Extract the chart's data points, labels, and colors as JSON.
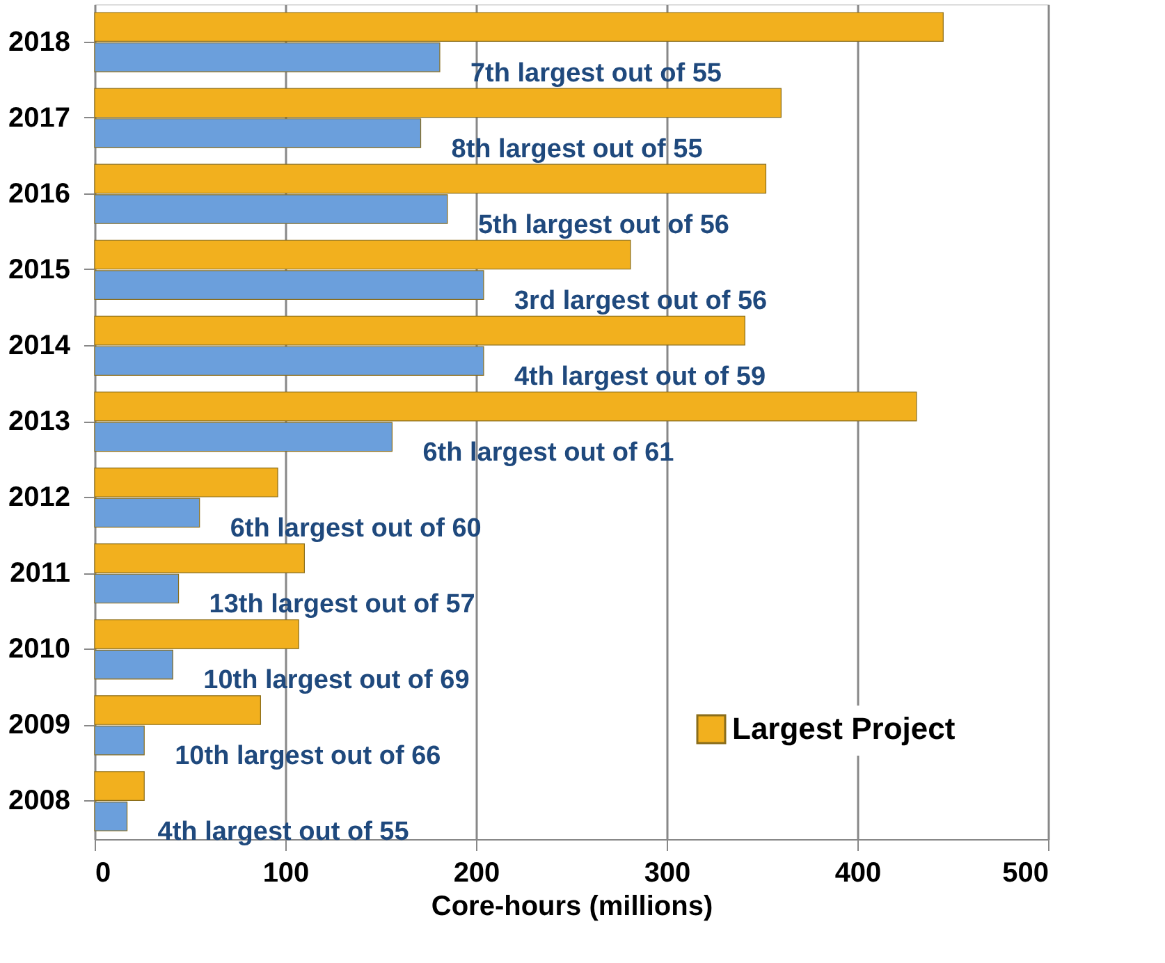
{
  "chart_data": {
    "type": "bar",
    "orientation": "horizontal",
    "xlabel": "Core-hours (millions)",
    "categories": [
      "2018",
      "2017",
      "2016",
      "2015",
      "2014",
      "2013",
      "2012",
      "2011",
      "2010",
      "2009",
      "2008"
    ],
    "series": [
      {
        "name": "Largest Project",
        "color": "#f2b01e",
        "values": [
          445,
          360,
          352,
          281,
          341,
          431,
          96,
          110,
          107,
          87,
          26
        ]
      },
      {
        "color": "#6b9fdc",
        "values": [
          181,
          171,
          185,
          204,
          204,
          156,
          55,
          44,
          41,
          26,
          17
        ]
      }
    ],
    "xlim": [
      0,
      500
    ],
    "xticks": [
      0,
      100,
      200,
      300,
      400,
      500
    ],
    "grid": "x",
    "legend": "bottom right",
    "annotations": [
      {
        "text": "7th largest out of 55",
        "x": 181,
        "y": "2018"
      },
      {
        "text": "8th largest out of 55",
        "x": 171,
        "y": "2017"
      },
      {
        "text": "5th largest out of 56",
        "x": 185,
        "y": "2016"
      },
      {
        "text": "3rd largest out of 56",
        "x": 204,
        "y": "2015"
      },
      {
        "text": "4th largest out of 59",
        "x": 204,
        "y": "2014"
      },
      {
        "text": "6th largest out of 61",
        "x": 156,
        "y": "2013"
      },
      {
        "text": "6th largest out of 60",
        "x": 55,
        "y": "2012"
      },
      {
        "text": "13th largest out of 57",
        "x": 44,
        "y": "2011"
      },
      {
        "text": "10th largest out of 69",
        "x": 41,
        "y": "2010"
      },
      {
        "text": "10th largest out of 66",
        "x": 26,
        "y": "2009"
      },
      {
        "text": "4th largest out of 55",
        "x": 17,
        "y": "2008"
      }
    ]
  }
}
